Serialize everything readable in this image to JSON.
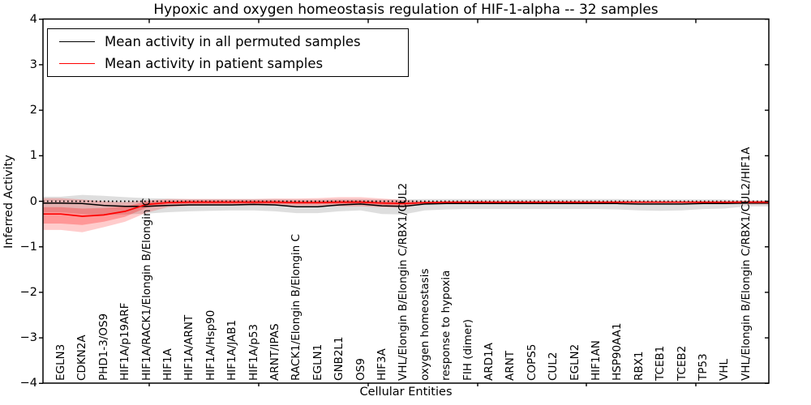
{
  "title": "Hypoxic and oxygen homeostasis regulation of HIF-1-alpha -- 32 samples",
  "legend": {
    "entries": [
      {
        "label": "Mean activity in all permuted samples",
        "color": "#000000"
      },
      {
        "label": "Mean activity in patient samples",
        "color": "#ff0000"
      }
    ]
  },
  "chart_data": {
    "type": "line",
    "title": "Hypoxic and oxygen homeostasis regulation of HIF-1-alpha -- 32 samples",
    "xlabel": "Cellular Entities",
    "ylabel": "Inferred Activity",
    "ylim": [
      -4,
      4
    ],
    "yticks": [
      4,
      3,
      2,
      1,
      0,
      -1,
      -2,
      -3,
      -4
    ],
    "ytick_labels": [
      "4",
      "3",
      "2",
      "1",
      "0",
      "−1",
      "−2",
      "−3",
      "−4"
    ],
    "grid": false,
    "legend_position": "upper left",
    "zero_reference_line": {
      "value": 0,
      "style": "dotted",
      "color": "#000000"
    },
    "categories": [
      "EGLN3",
      "CDKN2A",
      "PHD1-3/OS9",
      "HIF1A/p19ARF",
      "HIF1A/RACK1/Elongin B/Elongin C",
      "HIF1A",
      "HIF1A/ARNT",
      "HIF1A/Hsp90",
      "HIF1A/JAB1",
      "HIF1A/p53",
      "ARNT/IPAS",
      "RACK1/Elongin B/Elongin C",
      "EGLN1",
      "GNB2L1",
      "OS9",
      "HIF3A",
      "VHL/Elongin B/Elongin C/RBX1/CUL2",
      "oxygen homeostasis",
      "response to hypoxia",
      "FIH (dimer)",
      "ARD1A",
      "ARNT",
      "COPS5",
      "CUL2",
      "EGLN2",
      "HIF1AN",
      "HSP90AA1",
      "RBX1",
      "TCEB1",
      "TCEB2",
      "TP53",
      "VHL",
      "VHL/Elongin B/Elongin C/RBX1/CUL2/HIF1A"
    ],
    "series": [
      {
        "name": "Mean activity in all permuted samples",
        "color": "#000000",
        "band_color": "#000000",
        "band_opacity": 0.13,
        "values": [
          -0.04,
          -0.05,
          -0.09,
          -0.11,
          -0.11,
          -0.09,
          -0.08,
          -0.08,
          -0.08,
          -0.07,
          -0.08,
          -0.12,
          -0.12,
          -0.08,
          -0.06,
          -0.1,
          -0.11,
          -0.06,
          -0.05,
          -0.05,
          -0.05,
          -0.05,
          -0.05,
          -0.05,
          -0.05,
          -0.05,
          -0.05,
          -0.06,
          -0.06,
          -0.06,
          -0.05,
          -0.05,
          -0.04
        ],
        "band_hi": [
          0.1,
          0.14,
          0.12,
          0.09,
          0.07,
          0.06,
          0.05,
          0.05,
          0.05,
          0.05,
          0.05,
          0.04,
          0.04,
          0.05,
          0.05,
          0.04,
          0.04,
          0.05,
          0.05,
          0.05,
          0.05,
          0.05,
          0.05,
          0.05,
          0.05,
          0.05,
          0.05,
          0.04,
          0.04,
          0.04,
          0.04,
          0.04,
          0.02
        ],
        "band_lo": [
          -0.24,
          -0.28,
          -0.3,
          -0.29,
          -0.27,
          -0.24,
          -0.22,
          -0.21,
          -0.2,
          -0.2,
          -0.22,
          -0.26,
          -0.26,
          -0.22,
          -0.2,
          -0.28,
          -0.29,
          -0.2,
          -0.18,
          -0.17,
          -0.17,
          -0.17,
          -0.17,
          -0.17,
          -0.17,
          -0.17,
          -0.18,
          -0.2,
          -0.21,
          -0.2,
          -0.17,
          -0.16,
          -0.11
        ]
      },
      {
        "name": "Mean activity in patient samples",
        "color": "#ff0000",
        "band_color": "#ff0000",
        "band_opacity": 0.2,
        "values": [
          -0.28,
          -0.33,
          -0.3,
          -0.22,
          -0.07,
          -0.03,
          -0.02,
          -0.02,
          -0.02,
          -0.02,
          -0.02,
          -0.03,
          -0.03,
          -0.02,
          -0.02,
          -0.04,
          -0.05,
          -0.03,
          -0.02,
          -0.02,
          -0.02,
          -0.02,
          -0.02,
          -0.02,
          -0.02,
          -0.02,
          -0.02,
          -0.02,
          -0.02,
          -0.02,
          -0.02,
          -0.02,
          -0.02
        ],
        "band_hi": [
          0.07,
          0.04,
          0.0,
          -0.02,
          0.02,
          0.05,
          0.05,
          0.05,
          0.05,
          0.05,
          0.06,
          0.06,
          0.07,
          0.09,
          0.09,
          0.06,
          0.03,
          0.0,
          -0.01,
          -0.01,
          -0.01,
          -0.01,
          -0.01,
          -0.01,
          -0.01,
          -0.01,
          -0.01,
          -0.01,
          -0.01,
          -0.01,
          -0.01,
          -0.01,
          0.01
        ],
        "band_lo": [
          -0.63,
          -0.68,
          -0.57,
          -0.45,
          -0.25,
          -0.13,
          -0.1,
          -0.09,
          -0.09,
          -0.09,
          -0.09,
          -0.1,
          -0.1,
          -0.11,
          -0.11,
          -0.13,
          -0.14,
          -0.06,
          -0.03,
          -0.03,
          -0.03,
          -0.03,
          -0.03,
          -0.03,
          -0.03,
          -0.03,
          -0.03,
          -0.03,
          -0.03,
          -0.03,
          -0.03,
          -0.03,
          -0.07
        ],
        "inner_band_hi": [
          -0.13,
          -0.16,
          -0.15,
          -0.11,
          -0.01,
          0.01,
          0.02,
          0.02,
          0.02,
          0.02,
          0.02,
          0.01,
          0.01,
          0.02,
          0.02,
          0.0,
          -0.01,
          -0.02,
          -0.01,
          -0.01,
          -0.01,
          -0.01,
          -0.01,
          -0.01,
          -0.01,
          -0.01,
          -0.01,
          -0.01,
          -0.01,
          -0.01,
          -0.01,
          -0.01,
          0.0
        ],
        "inner_band_lo": [
          -0.49,
          -0.52,
          -0.45,
          -0.34,
          -0.14,
          -0.07,
          -0.06,
          -0.06,
          -0.06,
          -0.06,
          -0.06,
          -0.07,
          -0.07,
          -0.06,
          -0.06,
          -0.08,
          -0.09,
          -0.04,
          -0.03,
          -0.03,
          -0.03,
          -0.03,
          -0.03,
          -0.03,
          -0.03,
          -0.03,
          -0.03,
          -0.03,
          -0.03,
          -0.03,
          -0.03,
          -0.03,
          -0.04
        ]
      }
    ]
  }
}
